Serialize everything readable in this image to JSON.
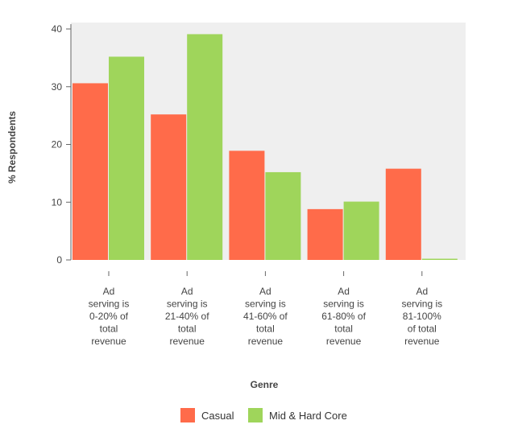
{
  "chart_data": {
    "type": "bar",
    "xlabel": "Genre",
    "ylabel": "% Respondents",
    "ylim": [
      0,
      40
    ],
    "yticks": [
      0,
      10,
      20,
      30,
      40
    ],
    "grid": false,
    "legend_position": "bottom",
    "categories": [
      [
        "Ad",
        "serving is",
        "0-20% of",
        "total",
        "revenue"
      ],
      [
        "Ad",
        "serving is",
        "21-40% of",
        "total",
        "revenue"
      ],
      [
        "Ad",
        "serving is",
        "41-60% of",
        "total",
        "revenue"
      ],
      [
        "Ad",
        "serving is",
        "61-80% of",
        "total",
        "revenue"
      ],
      [
        "Ad",
        "serving is",
        "81-100%",
        "of total",
        "revenue"
      ]
    ],
    "series": [
      {
        "name": "Casual",
        "color": "#ff6b4a",
        "values": [
          30.6,
          25.2,
          18.9,
          8.8,
          15.8
        ]
      },
      {
        "name": "Mid & Hard Core",
        "color": "#9fd55b",
        "values": [
          35.2,
          39.1,
          15.2,
          10.1,
          0.2
        ]
      }
    ],
    "plot_background": "#efefef"
  }
}
